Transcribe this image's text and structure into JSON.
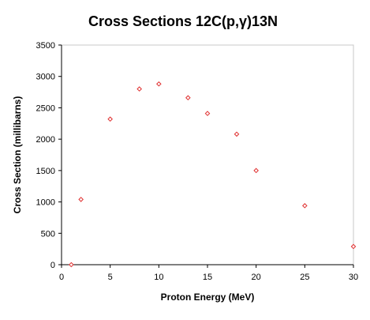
{
  "chart_data": {
    "type": "scatter",
    "title": "Cross Sections 12C(p,γ)13N",
    "xlabel": "Proton Energy (MeV)",
    "ylabel": "Cross Section (millibarns)",
    "xlim": [
      0,
      30
    ],
    "ylim": [
      0,
      3500
    ],
    "xticks": [
      0,
      5,
      10,
      15,
      20,
      25,
      30
    ],
    "yticks": [
      0,
      500,
      1000,
      1500,
      2000,
      2500,
      3000,
      3500
    ],
    "grid": false,
    "legend": "none",
    "marker": "diamond",
    "marker_color": "#e03030",
    "series": [
      {
        "x": [
          1,
          2,
          5,
          8,
          10,
          13,
          15,
          18,
          20,
          25,
          30
        ],
        "y": [
          0,
          1040,
          2320,
          2800,
          2880,
          2660,
          2410,
          2080,
          1500,
          940,
          290
        ]
      }
    ]
  }
}
